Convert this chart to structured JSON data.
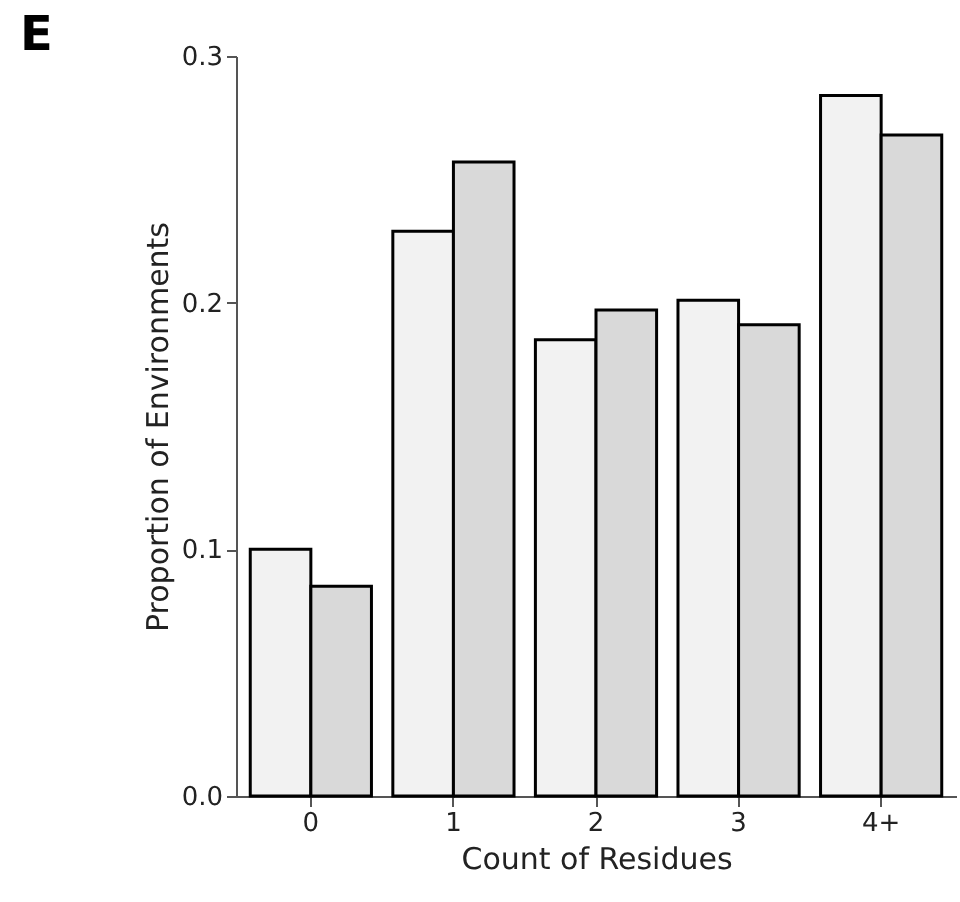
{
  "chart_data": {
    "type": "bar",
    "categories": [
      "0",
      "1",
      "2",
      "3",
      "4+"
    ],
    "series": [
      {
        "color": "#f2f2f2",
        "values": [
          0.1,
          0.229,
          0.185,
          0.201,
          0.284
        ]
      },
      {
        "color": "#d9d9d9",
        "values": [
          0.085,
          0.257,
          0.197,
          0.191,
          0.268
        ]
      }
    ],
    "xlabel": "Count of Residues",
    "ylabel": "Proportion of Environments",
    "ylim": [
      0,
      0.3
    ],
    "yticks": [
      {
        "value": 0,
        "label": "0.0"
      },
      0.1,
      0.2,
      0.3
    ],
    "annotations": [
      "E"
    ],
    "grid": false
  }
}
